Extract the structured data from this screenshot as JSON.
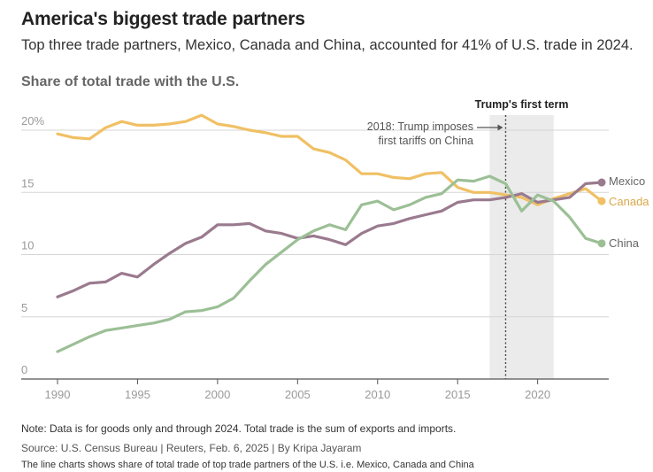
{
  "header": {
    "title": "America's biggest trade partners",
    "subtitle": "Top three trade partners, Mexico, Canada and China, accounted for 41% of U.S. trade in 2024.",
    "section_title": "Share of total trade with the U.S."
  },
  "footer": {
    "note": "Note: Data is for goods only and through 2024. Total trade is the sum of exports and imports.",
    "source": "Source: U.S. Census Bureau | Reuters, Feb. 6, 2025 | By Kripa Jayaram",
    "description": "The line charts shows share of total trade of top trade partners of the U.S. i.e. Mexico, Canada and China"
  },
  "chart_data": {
    "type": "line",
    "title": "America's biggest trade partners",
    "subtitle": "Top three trade partners, Mexico, Canada and China, accounted for 41% of U.S. trade in 2024.",
    "ylabel": "Share of total trade with the U.S.",
    "xlim": [
      1989,
      2025
    ],
    "ylim": [
      0,
      20
    ],
    "x_ticks": [
      1990,
      1995,
      2000,
      2005,
      2010,
      2015,
      2020
    ],
    "x_tick_labels": [
      "1990",
      "1995",
      "2000",
      "2005",
      "2010",
      "2015",
      "2020"
    ],
    "y_ticks": [
      0,
      5,
      10,
      15,
      20
    ],
    "y_tick_labels": [
      "0",
      "5",
      "10",
      "15",
      "20%"
    ],
    "grid": "horizontal",
    "highlight_band": {
      "label": "Trump's first term",
      "x_start": 2017,
      "x_end": 2021
    },
    "annotation": {
      "lines": [
        "2018: Trump imposes",
        "first tariffs on China"
      ],
      "x": 2018
    },
    "x": [
      1990,
      1991,
      1992,
      1993,
      1994,
      1995,
      1996,
      1997,
      1998,
      1999,
      2000,
      2001,
      2002,
      2003,
      2004,
      2005,
      2006,
      2007,
      2008,
      2009,
      2010,
      2011,
      2012,
      2013,
      2014,
      2015,
      2016,
      2017,
      2018,
      2019,
      2020,
      2021,
      2022,
      2023,
      2024
    ],
    "series": [
      {
        "name": "Canada",
        "color": "#f0c064",
        "values": [
          19.7,
          19.4,
          19.3,
          20.2,
          20.7,
          20.4,
          20.4,
          20.5,
          20.7,
          21.2,
          20.5,
          20.3,
          20.0,
          19.8,
          19.5,
          19.5,
          18.5,
          18.2,
          17.6,
          16.5,
          16.5,
          16.2,
          16.1,
          16.5,
          16.6,
          15.4,
          15.0,
          15.0,
          14.8,
          14.6,
          14.0,
          14.5,
          14.9,
          15.3,
          14.3
        ]
      },
      {
        "name": "Mexico",
        "color": "#9a7a8e",
        "values": [
          6.6,
          7.1,
          7.7,
          7.8,
          8.5,
          8.2,
          9.2,
          10.1,
          10.9,
          11.4,
          12.4,
          12.4,
          12.5,
          11.9,
          11.7,
          11.3,
          11.5,
          11.2,
          10.8,
          11.7,
          12.3,
          12.5,
          12.9,
          13.2,
          13.5,
          14.2,
          14.4,
          14.4,
          14.6,
          14.9,
          14.2,
          14.4,
          14.6,
          15.7,
          15.8
        ]
      },
      {
        "name": "China",
        "color": "#9cbf96",
        "values": [
          2.2,
          2.8,
          3.4,
          3.9,
          4.1,
          4.3,
          4.5,
          4.8,
          5.4,
          5.5,
          5.8,
          6.5,
          7.9,
          9.2,
          10.2,
          11.2,
          11.9,
          12.4,
          12.0,
          14.0,
          14.3,
          13.6,
          14.0,
          14.6,
          14.9,
          16.0,
          15.9,
          16.3,
          15.7,
          13.5,
          14.8,
          14.3,
          13.0,
          11.3,
          10.9
        ]
      }
    ]
  },
  "style": {
    "grid_color": "#d5d5d5",
    "axis_color": "#555555",
    "tick_label_color": "#999999",
    "band_color": "#ebebeb"
  }
}
